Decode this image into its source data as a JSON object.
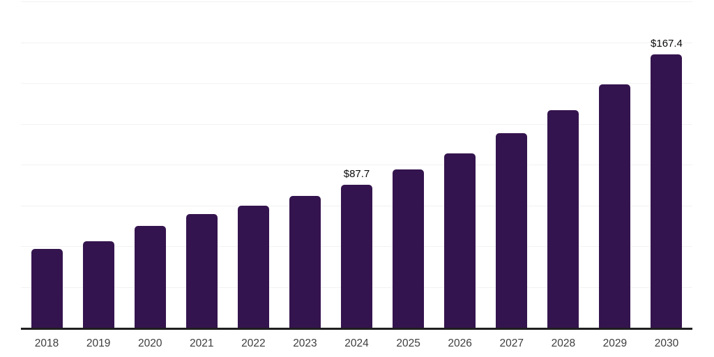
{
  "chart_data": {
    "type": "bar",
    "title": "",
    "xlabel": "",
    "ylabel": "",
    "categories": [
      "2018",
      "2019",
      "2020",
      "2021",
      "2022",
      "2023",
      "2024",
      "2025",
      "2026",
      "2027",
      "2028",
      "2029",
      "2030"
    ],
    "values": [
      48.3,
      53.1,
      62.3,
      69.8,
      74.8,
      80.6,
      87.7,
      96.9,
      106.8,
      119.4,
      133.2,
      149.3,
      167.4
    ],
    "data_labels": [
      {
        "category": "2024",
        "text": "$87.7"
      },
      {
        "category": "2030",
        "text": "$167.4"
      }
    ],
    "ylim": [
      0,
      200
    ],
    "gridline_step": 25,
    "gridline_count": 8,
    "grid": true,
    "legend": false,
    "y_tick_labels_visible": false,
    "colors": {
      "bar": "#34144e",
      "axis_line": "#1f1f1f",
      "gridline": "#f2f2f2",
      "tick_label": "#3d3d3d",
      "data_label": "#0a0a0a",
      "background": "#ffffff"
    }
  }
}
